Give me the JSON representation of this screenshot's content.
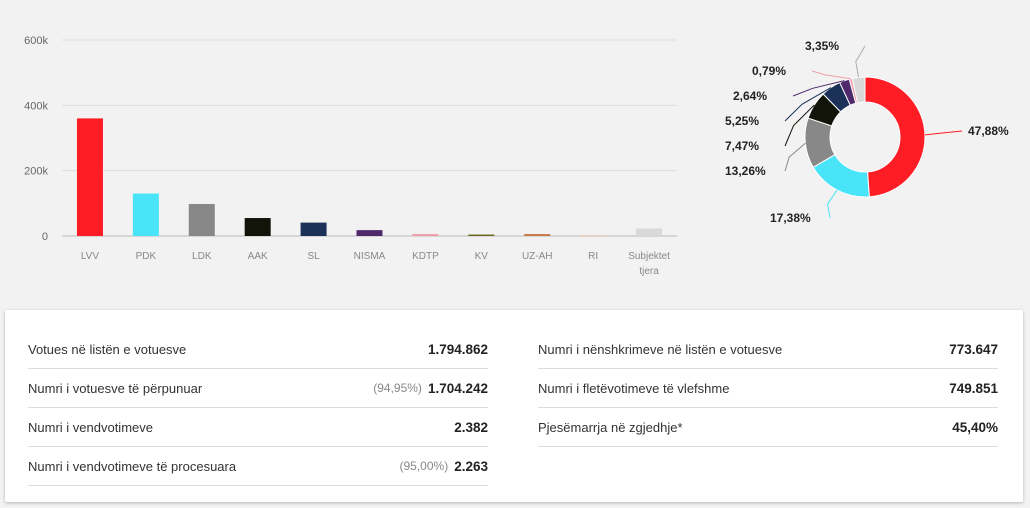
{
  "chart_data": [
    {
      "type": "bar",
      "categories": [
        "LVV",
        "PDK",
        "LDK",
        "AAK",
        "SL",
        "NISMA",
        "KDTP",
        "KV",
        "UZ-AH",
        "RI",
        "Subjektet tjera"
      ],
      "values": [
        360000,
        130000,
        98000,
        55000,
        41000,
        18000,
        6000,
        4500,
        6000,
        2500,
        23000
      ],
      "colors": [
        "#ff1d25",
        "#4ae4f9",
        "#888888",
        "#12140a",
        "#1b3158",
        "#4f2a6b",
        "#f09eaa",
        "#6b6b1f",
        "#c87a4a",
        "#f3c7a6",
        "#d9d9d9"
      ],
      "yticks": [
        "0",
        "200k",
        "400k",
        "600k"
      ],
      "ylim": [
        0,
        600000
      ],
      "grid": true
    },
    {
      "type": "pie",
      "labels": [
        "47,88%",
        "17,38%",
        "13,26%",
        "7,47%",
        "5,25%",
        "2,64%",
        "0,79%",
        "3,35%"
      ],
      "values": [
        47.88,
        17.38,
        13.26,
        7.47,
        5.25,
        2.64,
        0.79,
        3.35
      ],
      "colors": [
        "#ff1d25",
        "#4ae4f9",
        "#888888",
        "#12140a",
        "#1b3158",
        "#4f2a6b",
        "#f09eaa",
        "#d9d9d9"
      ]
    }
  ],
  "stats": {
    "left": [
      {
        "label": "Votues në listën e votuesve",
        "pct": "",
        "value": "1.794.862"
      },
      {
        "label": "Numri i votuesve të përpunuar",
        "pct": "(94,95%)",
        "value": "1.704.242"
      },
      {
        "label": "Numri i vendvotimeve",
        "pct": "",
        "value": "2.382"
      },
      {
        "label": "Numri i vendvotimeve të procesuara",
        "pct": "(95,00%)",
        "value": "2.263"
      }
    ],
    "right": [
      {
        "label": "Numri i nënshkrimeve në listën e votuesve",
        "pct": "",
        "value": "773.647"
      },
      {
        "label": "Numri i fletëvotimeve të vlefshme",
        "pct": "",
        "value": "749.851"
      },
      {
        "label": "Pjesëmarrja në zgjedhje*",
        "pct": "",
        "value": "45,40%"
      }
    ]
  }
}
